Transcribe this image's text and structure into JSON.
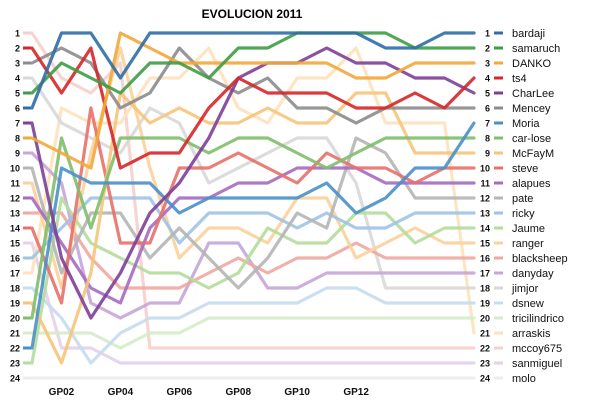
{
  "chart_data": {
    "type": "line",
    "title": "EVOLUCION 2011",
    "xlabel": "",
    "ylabel": "",
    "x": [
      1,
      2,
      3,
      4,
      5,
      6,
      7,
      8,
      9,
      10,
      11,
      12,
      13,
      14,
      15,
      16
    ],
    "x_tick_labels": [
      {
        "x": 2,
        "label": "GP02"
      },
      {
        "x": 4,
        "label": "GP04"
      },
      {
        "x": 6,
        "label": "GP06"
      },
      {
        "x": 8,
        "label": "GP08"
      },
      {
        "x": 10,
        "label": "GP10"
      },
      {
        "x": 12,
        "label": "GP12"
      }
    ],
    "y_ticks": [
      1,
      2,
      3,
      4,
      5,
      6,
      7,
      8,
      9,
      10,
      11,
      12,
      13,
      14,
      15,
      16,
      17,
      18,
      19,
      20,
      21,
      22,
      23,
      24
    ],
    "ylim": [
      1,
      24
    ],
    "y_inverted": true,
    "grid": false,
    "legend_position": "right",
    "series": [
      {
        "name": "bardaji",
        "color": "#2f6ea6",
        "values": [
          6,
          1,
          1,
          4,
          1,
          1,
          1,
          1,
          1,
          1,
          1,
          1,
          2,
          2,
          1,
          1
        ]
      },
      {
        "name": "samaruch",
        "color": "#3f9c46",
        "values": [
          5,
          3,
          4,
          5,
          3,
          3,
          4,
          2,
          2,
          1,
          1,
          1,
          1,
          2,
          2,
          2
        ]
      },
      {
        "name": "DANKO",
        "color": "#f2a93b",
        "values": [
          8,
          9,
          10,
          1,
          2,
          3,
          3,
          3,
          3,
          3,
          3,
          4,
          4,
          3,
          3,
          3
        ]
      },
      {
        "name": "ts4",
        "color": "#d62728",
        "values": [
          2,
          5,
          2,
          10,
          9,
          9,
          6,
          4,
          5,
          5,
          5,
          6,
          6,
          5,
          6,
          4
        ]
      },
      {
        "name": "CharLee",
        "color": "#7e3f98",
        "values": [
          7,
          16,
          20,
          17,
          13,
          11,
          8,
          4,
          3,
          3,
          2,
          3,
          3,
          4,
          4,
          5
        ]
      },
      {
        "name": "Mencey",
        "color": "#8c8c8c",
        "values": [
          3,
          2,
          3,
          6,
          5,
          2,
          4,
          5,
          4,
          6,
          6,
          7,
          6,
          6,
          6,
          6
        ]
      },
      {
        "name": "Moria",
        "color": "#4a90c8",
        "values": [
          22,
          10,
          11,
          11,
          11,
          13,
          12,
          12,
          12,
          12,
          11,
          13,
          12,
          10,
          10,
          7
        ]
      },
      {
        "name": "car-lose",
        "color": "#7fbf6a",
        "values": [
          20,
          8,
          14,
          8,
          8,
          8,
          9,
          8,
          8,
          9,
          10,
          9,
          8,
          8,
          8,
          8
        ]
      },
      {
        "name": "McFayM",
        "color": "#f6c47a",
        "values": [
          19,
          23,
          17,
          5,
          7,
          6,
          7,
          7,
          6,
          7,
          7,
          5,
          5,
          9,
          9,
          9
        ]
      },
      {
        "name": "steve",
        "color": "#e8706a",
        "values": [
          14,
          19,
          6,
          15,
          15,
          10,
          10,
          9,
          10,
          11,
          9,
          10,
          10,
          11,
          10,
          10
        ]
      },
      {
        "name": "alapues",
        "color": "#a56cc1",
        "values": [
          12,
          15,
          18,
          19,
          14,
          12,
          12,
          11,
          11,
          10,
          10,
          10,
          11,
          11,
          11,
          11
        ]
      },
      {
        "name": "pate",
        "color": "#b5b5b5",
        "values": [
          10,
          17,
          13,
          13,
          16,
          14,
          16,
          18,
          16,
          13,
          14,
          8,
          9,
          12,
          12,
          12
        ]
      },
      {
        "name": "ricky",
        "color": "#9ec3e4",
        "values": [
          16,
          14,
          12,
          12,
          12,
          15,
          13,
          13,
          13,
          14,
          13,
          14,
          14,
          13,
          13,
          13
        ]
      },
      {
        "name": "Jaume",
        "color": "#b3dd9c",
        "values": [
          23,
          12,
          15,
          16,
          17,
          17,
          18,
          17,
          14,
          15,
          15,
          13,
          13,
          15,
          14,
          14
        ]
      },
      {
        "name": "ranger",
        "color": "#fbd19a",
        "values": [
          11,
          18,
          9,
          2,
          10,
          16,
          14,
          14,
          15,
          12,
          12,
          16,
          15,
          14,
          15,
          15
        ]
      },
      {
        "name": "blacksheep",
        "color": "#f0a7a0",
        "values": [
          13,
          13,
          16,
          18,
          18,
          18,
          17,
          16,
          17,
          16,
          16,
          15,
          16,
          16,
          16,
          16
        ]
      },
      {
        "name": "danyday",
        "color": "#c7a5d8",
        "values": [
          9,
          11,
          19,
          20,
          19,
          19,
          15,
          15,
          18,
          18,
          17,
          17,
          17,
          17,
          17,
          17
        ]
      },
      {
        "name": "jimjor",
        "color": "#d8d8d8",
        "values": [
          4,
          7,
          8,
          9,
          6,
          7,
          11,
          10,
          9,
          8,
          8,
          11,
          18,
          18,
          18,
          18
        ]
      },
      {
        "name": "dsnew",
        "color": "#c6dcf0",
        "values": [
          18,
          20,
          23,
          21,
          20,
          20,
          19,
          19,
          19,
          19,
          18,
          18,
          19,
          19,
          19,
          19
        ]
      },
      {
        "name": "tricilindrico",
        "color": "#d6ecc8",
        "values": [
          21,
          21,
          21,
          22,
          21,
          21,
          20,
          20,
          20,
          20,
          20,
          20,
          20,
          20,
          20,
          20
        ]
      },
      {
        "name": "arraskis",
        "color": "#fde2bd",
        "values": [
          17,
          6,
          7,
          7,
          4,
          4,
          2,
          6,
          7,
          4,
          4,
          2,
          7,
          7,
          7,
          21
        ]
      },
      {
        "name": "mccoy675",
        "color": "#f7cfcc",
        "values": [
          1,
          4,
          5,
          3,
          22,
          22,
          22,
          22,
          22,
          22,
          22,
          22,
          22,
          22,
          22,
          22
        ]
      },
      {
        "name": "sanmiguel",
        "color": "#e2d2ec",
        "values": [
          15,
          22,
          22,
          23,
          23,
          23,
          23,
          23,
          23,
          23,
          23,
          23,
          23,
          23,
          23,
          23
        ]
      },
      {
        "name": "molo",
        "color": "#ececec",
        "values": [
          24,
          24,
          24,
          24,
          24,
          24,
          24,
          24,
          24,
          24,
          24,
          24,
          24,
          24,
          24,
          24
        ]
      }
    ]
  }
}
